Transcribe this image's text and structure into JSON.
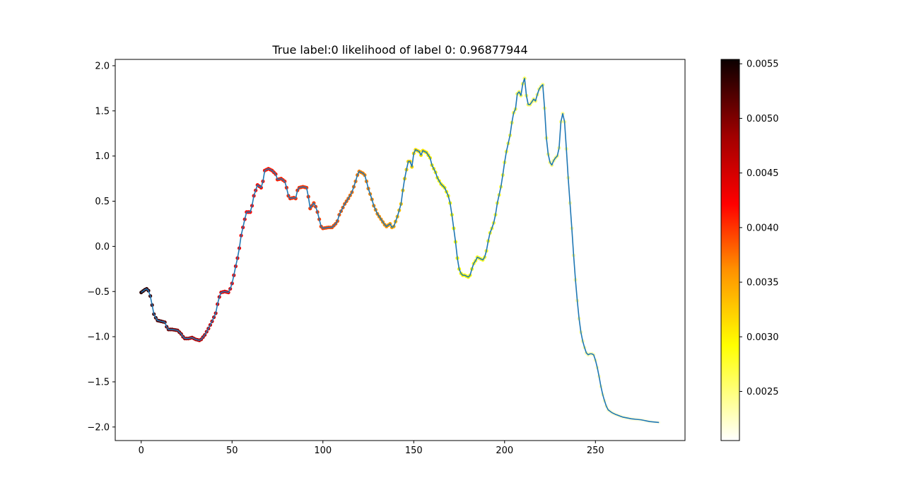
{
  "chart_data": {
    "type": "scatter",
    "title": "True label:0   likelihood of label 0: 0.96877944",
    "xlabel": "",
    "ylabel": "",
    "xlim": [
      -14.3,
      299.3
    ],
    "ylim": [
      -2.15,
      2.07
    ],
    "xticks": [
      0,
      50,
      100,
      150,
      200,
      250
    ],
    "xtick_labels": [
      "0",
      "50",
      "100",
      "150",
      "200",
      "250"
    ],
    "yticks": [
      -2.0,
      -1.5,
      -1.0,
      -0.5,
      0.0,
      0.5,
      1.0,
      1.5,
      2.0
    ],
    "ytick_labels": [
      "−2.0",
      "−1.5",
      "−1.0",
      "−0.5",
      "0.0",
      "0.5",
      "1.0",
      "1.5",
      "2.0"
    ],
    "grid": false,
    "line_color": "#1f77b4",
    "colormap": "hot_r",
    "colorbar": {
      "min": 0.00205,
      "max": 0.00554,
      "ticks": [
        0.0025,
        0.003,
        0.0035,
        0.004,
        0.0045,
        0.005,
        0.0055
      ],
      "tick_labels": [
        "0.0025",
        "0.0030",
        "0.0035",
        "0.0040",
        "0.0045",
        "0.0050",
        "0.0055"
      ]
    },
    "series_line": {
      "keypoints": [
        [
          0,
          -0.51
        ],
        [
          2,
          -0.48
        ],
        [
          3,
          -0.47
        ],
        [
          4,
          -0.49
        ],
        [
          5,
          -0.55
        ],
        [
          6,
          -0.65
        ],
        [
          7,
          -0.75
        ],
        [
          8,
          -0.79
        ],
        [
          9,
          -0.82
        ],
        [
          11,
          -0.83
        ],
        [
          13,
          -0.84
        ],
        [
          14,
          -0.89
        ],
        [
          15,
          -0.92
        ],
        [
          17,
          -0.92
        ],
        [
          20,
          -0.93
        ],
        [
          22,
          -0.97
        ],
        [
          23,
          -1.0
        ],
        [
          24,
          -1.02
        ],
        [
          26,
          -1.02
        ],
        [
          28,
          -1.01
        ],
        [
          30,
          -1.03
        ],
        [
          32,
          -1.04
        ],
        [
          33,
          -1.03
        ],
        [
          35,
          -0.98
        ],
        [
          37,
          -0.91
        ],
        [
          39,
          -0.83
        ],
        [
          41,
          -0.74
        ],
        [
          42,
          -0.64
        ],
        [
          43,
          -0.56
        ],
        [
          44,
          -0.51
        ],
        [
          46,
          -0.5
        ],
        [
          48,
          -0.51
        ],
        [
          49,
          -0.47
        ],
        [
          50,
          -0.41
        ],
        [
          51,
          -0.32
        ],
        [
          52,
          -0.22
        ],
        [
          53,
          -0.13
        ],
        [
          54,
          -0.02
        ],
        [
          55,
          0.12
        ],
        [
          56,
          0.21
        ],
        [
          57,
          0.3
        ],
        [
          58,
          0.38
        ],
        [
          60,
          0.38
        ],
        [
          61,
          0.45
        ],
        [
          62,
          0.56
        ],
        [
          63,
          0.62
        ],
        [
          64,
          0.68
        ],
        [
          66,
          0.65
        ],
        [
          67,
          0.72
        ],
        [
          68,
          0.84
        ],
        [
          70,
          0.86
        ],
        [
          72,
          0.84
        ],
        [
          74,
          0.8
        ],
        [
          75,
          0.74
        ],
        [
          77,
          0.75
        ],
        [
          79,
          0.72
        ],
        [
          80,
          0.65
        ],
        [
          81,
          0.56
        ],
        [
          82,
          0.53
        ],
        [
          84,
          0.54
        ],
        [
          85,
          0.53
        ],
        [
          86,
          0.62
        ],
        [
          87,
          0.65
        ],
        [
          89,
          0.66
        ],
        [
          91,
          0.65
        ],
        [
          92,
          0.55
        ],
        [
          93,
          0.42
        ],
        [
          94,
          0.45
        ],
        [
          95,
          0.48
        ],
        [
          96,
          0.44
        ],
        [
          97,
          0.38
        ],
        [
          98,
          0.3
        ],
        [
          99,
          0.22
        ],
        [
          100,
          0.2
        ],
        [
          103,
          0.21
        ],
        [
          105,
          0.21
        ],
        [
          107,
          0.25
        ],
        [
          108,
          0.28
        ],
        [
          109,
          0.35
        ],
        [
          111,
          0.43
        ],
        [
          112,
          0.47
        ],
        [
          114,
          0.53
        ],
        [
          116,
          0.6
        ],
        [
          117,
          0.66
        ],
        [
          118,
          0.72
        ],
        [
          119,
          0.79
        ],
        [
          120,
          0.83
        ],
        [
          122,
          0.81
        ],
        [
          123,
          0.79
        ],
        [
          124,
          0.72
        ],
        [
          125,
          0.64
        ],
        [
          127,
          0.52
        ],
        [
          128,
          0.45
        ],
        [
          130,
          0.36
        ],
        [
          132,
          0.3
        ],
        [
          134,
          0.24
        ],
        [
          135,
          0.22
        ],
        [
          137,
          0.25
        ],
        [
          138,
          0.21
        ],
        [
          139,
          0.22
        ],
        [
          141,
          0.33
        ],
        [
          143,
          0.47
        ],
        [
          144,
          0.62
        ],
        [
          145,
          0.75
        ],
        [
          146,
          0.85
        ],
        [
          147,
          0.94
        ],
        [
          148,
          0.94
        ],
        [
          149,
          0.88
        ],
        [
          150,
          1.03
        ],
        [
          151,
          1.07
        ],
        [
          153,
          1.05
        ],
        [
          154,
          1.01
        ],
        [
          155,
          1.06
        ],
        [
          157,
          1.04
        ],
        [
          159,
          0.98
        ],
        [
          160,
          0.9
        ],
        [
          162,
          0.82
        ],
        [
          163,
          0.76
        ],
        [
          165,
          0.69
        ],
        [
          167,
          0.65
        ],
        [
          169,
          0.56
        ],
        [
          170,
          0.48
        ],
        [
          171,
          0.35
        ],
        [
          172,
          0.2
        ],
        [
          173,
          0.05
        ],
        [
          174,
          -0.13
        ],
        [
          175,
          -0.25
        ],
        [
          176,
          -0.3
        ],
        [
          177,
          -0.32
        ],
        [
          178,
          -0.32
        ],
        [
          179,
          -0.33
        ],
        [
          180,
          -0.34
        ],
        [
          181,
          -0.32
        ],
        [
          182,
          -0.25
        ],
        [
          183,
          -0.19
        ],
        [
          184,
          -0.16
        ],
        [
          185,
          -0.12
        ],
        [
          187,
          -0.14
        ],
        [
          188,
          -0.15
        ],
        [
          189,
          -0.12
        ],
        [
          190,
          -0.05
        ],
        [
          191,
          0.06
        ],
        [
          192,
          0.15
        ],
        [
          193,
          0.2
        ],
        [
          194,
          0.26
        ],
        [
          195,
          0.35
        ],
        [
          196,
          0.48
        ],
        [
          197,
          0.57
        ],
        [
          198,
          0.66
        ],
        [
          199,
          0.79
        ],
        [
          200,
          0.93
        ],
        [
          201,
          1.05
        ],
        [
          202,
          1.14
        ],
        [
          203,
          1.23
        ],
        [
          204,
          1.37
        ],
        [
          205,
          1.48
        ],
        [
          206,
          1.52
        ],
        [
          207,
          1.69
        ],
        [
          208,
          1.71
        ],
        [
          209,
          1.67
        ],
        [
          210,
          1.8
        ],
        [
          211,
          1.86
        ],
        [
          212,
          1.67
        ],
        [
          213,
          1.57
        ],
        [
          214,
          1.57
        ],
        [
          215,
          1.6
        ],
        [
          216,
          1.63
        ],
        [
          217,
          1.61
        ],
        [
          218,
          1.68
        ],
        [
          219,
          1.74
        ],
        [
          220,
          1.77
        ],
        [
          221,
          1.79
        ],
        [
          222,
          1.53
        ],
        [
          223,
          1.2
        ],
        [
          224,
          1.02
        ],
        [
          225,
          0.93
        ],
        [
          226,
          0.9
        ],
        [
          227,
          0.95
        ],
        [
          228,
          0.98
        ],
        [
          229,
          1.0
        ],
        [
          230,
          1.09
        ],
        [
          231,
          1.38
        ],
        [
          232,
          1.47
        ],
        [
          233,
          1.38
        ],
        [
          234,
          1.08
        ],
        [
          235,
          0.76
        ],
        [
          236,
          0.48
        ],
        [
          237,
          0.2
        ],
        [
          238,
          -0.1
        ],
        [
          239,
          -0.37
        ],
        [
          240,
          -0.6
        ],
        [
          241,
          -0.8
        ],
        [
          242,
          -0.95
        ],
        [
          243,
          -1.05
        ],
        [
          244,
          -1.12
        ],
        [
          245,
          -1.18
        ],
        [
          246,
          -1.2
        ],
        [
          247,
          -1.19
        ],
        [
          248,
          -1.19
        ],
        [
          249,
          -1.2
        ],
        [
          250,
          -1.26
        ],
        [
          251,
          -1.34
        ],
        [
          252,
          -1.44
        ],
        [
          253,
          -1.55
        ],
        [
          254,
          -1.64
        ],
        [
          255,
          -1.71
        ],
        [
          256,
          -1.77
        ],
        [
          257,
          -1.81
        ],
        [
          259,
          -1.84
        ],
        [
          261,
          -1.86
        ],
        [
          265,
          -1.89
        ],
        [
          270,
          -1.91
        ],
        [
          275,
          -1.92
        ],
        [
          280,
          -1.94
        ],
        [
          285,
          -1.95
        ]
      ],
      "x_end": 285
    },
    "scatter_points": {
      "x_range": [
        0,
        285
      ],
      "value_keypoints": [
        [
          0,
          0.0054
        ],
        [
          10,
          0.0052
        ],
        [
          18,
          0.005
        ],
        [
          30,
          0.0047
        ],
        [
          45,
          0.0044
        ],
        [
          60,
          0.0042
        ],
        [
          75,
          0.0041
        ],
        [
          90,
          0.004
        ],
        [
          105,
          0.0039
        ],
        [
          120,
          0.0037
        ],
        [
          135,
          0.0036
        ],
        [
          145,
          0.0032
        ],
        [
          160,
          0.003
        ],
        [
          175,
          0.0029
        ],
        [
          200,
          0.0027
        ],
        [
          220,
          0.0025
        ],
        [
          240,
          0.00235
        ],
        [
          260,
          0.0022
        ],
        [
          285,
          0.0021
        ]
      ]
    }
  }
}
